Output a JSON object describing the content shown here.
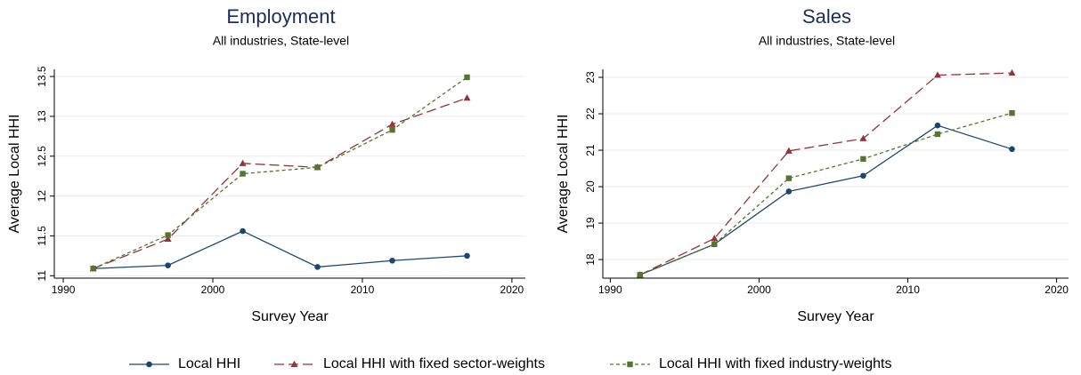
{
  "chart_data": [
    {
      "type": "line",
      "title": "Employment",
      "subtitle": "All industries, State-level",
      "x_label": "Survey Year",
      "y_label": "Average Local HHI",
      "x": [
        1992,
        1997,
        2002,
        2007,
        2012,
        2017
      ],
      "series": [
        {
          "values": [
            11.09,
            11.13,
            11.56,
            11.11,
            11.19,
            11.25
          ]
        },
        {
          "values": [
            11.09,
            11.46,
            12.41,
            12.36,
            12.9,
            13.23
          ]
        },
        {
          "values": [
            11.09,
            11.51,
            12.28,
            12.36,
            12.83,
            13.49
          ]
        }
      ],
      "xlim": [
        1989.4,
        2020.9
      ],
      "xticks": [
        1990,
        2000,
        2010,
        2020
      ],
      "ylim": [
        10.97,
        13.59
      ],
      "yticks": [
        11,
        11.5,
        12,
        12.5,
        13,
        13.5
      ],
      "grid": true
    },
    {
      "type": "line",
      "title": "Sales",
      "subtitle": "All industries, State-level",
      "x_label": "Survey Year",
      "y_label": "Average Local HHI",
      "x": [
        1992,
        1997,
        2002,
        2007,
        2012,
        2017
      ],
      "series": [
        {
          "values": [
            17.58,
            18.42,
            19.87,
            20.3,
            21.68,
            21.03
          ]
        },
        {
          "values": [
            17.58,
            18.58,
            20.98,
            21.32,
            23.06,
            23.12
          ]
        },
        {
          "values": [
            17.58,
            18.42,
            20.23,
            20.76,
            21.44,
            22.02
          ]
        }
      ],
      "xlim": [
        1989.5,
        2020.8
      ],
      "xticks": [
        1990,
        2000,
        2010,
        2020
      ],
      "ylim": [
        17.49,
        23.22
      ],
      "yticks": [
        18,
        19,
        20,
        21,
        22,
        23
      ],
      "grid": true
    }
  ],
  "legend": [
    {
      "name": "Local HHI",
      "color": "#1a476f",
      "marker": "circle",
      "dash": "solid"
    },
    {
      "name": "Local HHI with fixed sector-weights",
      "color": "#90353b",
      "marker": "triangle",
      "dash": "longdash"
    },
    {
      "name": "Local HHI with fixed industry-weights",
      "color": "#55752f",
      "marker": "square",
      "dash": "shortdash"
    }
  ]
}
